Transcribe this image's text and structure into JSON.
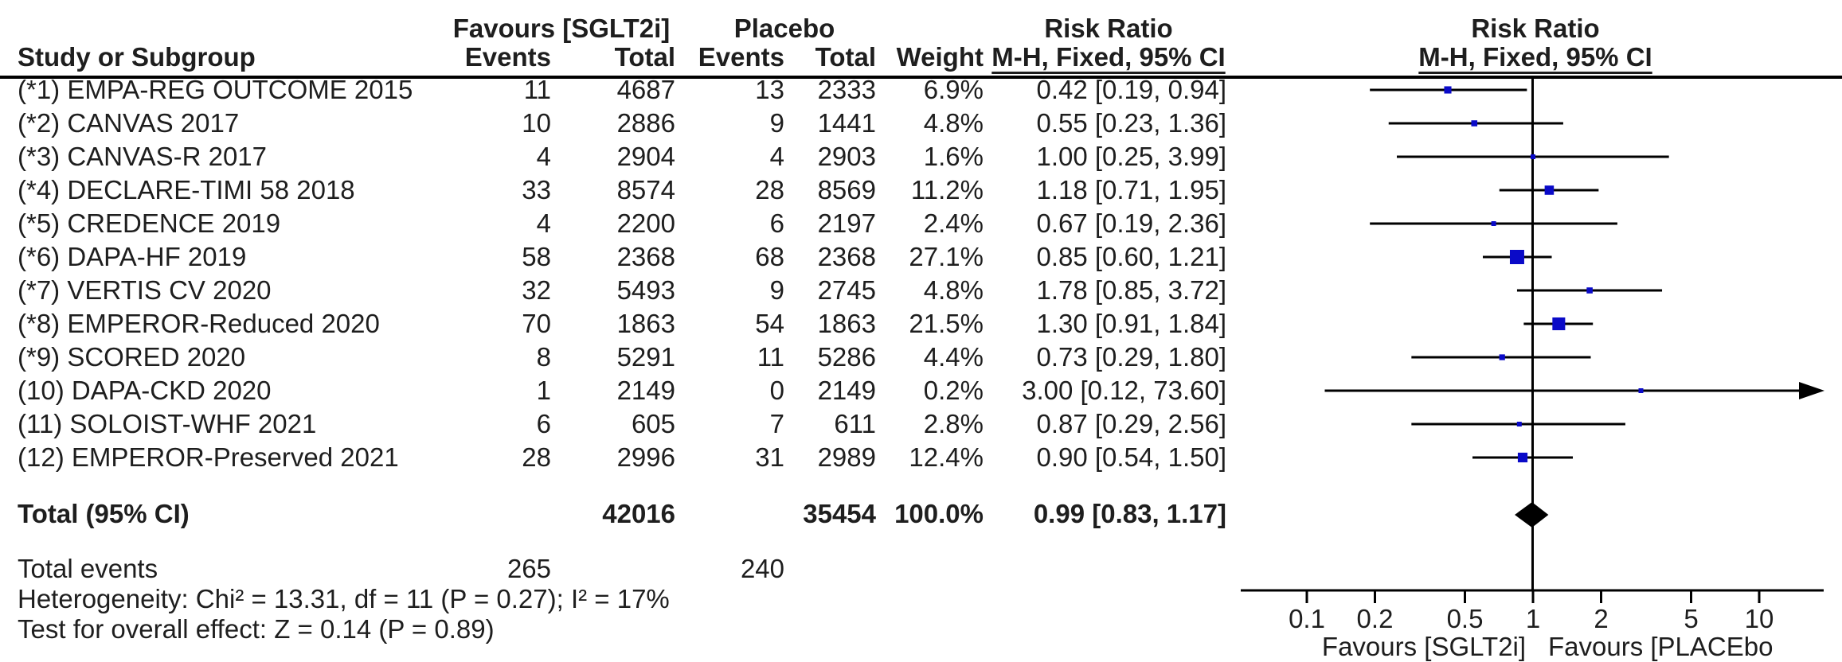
{
  "header": {
    "study_col": "Study or Subgroup",
    "group_sglt2i": "Favours [SGLT2i]",
    "group_placebo": "Placebo",
    "risk_ratio": "Risk Ratio",
    "mh_fixed_ci": "M-H, Fixed, 95% CI",
    "col_events": "Events",
    "col_total": "Total",
    "col_weight": "Weight"
  },
  "studies": [
    {
      "label": "(*1) EMPA-REG OUTCOME 2015",
      "events_sglt2i": "11",
      "total_sglt2i": "4687",
      "events_placebo": "13",
      "total_placebo": "2333",
      "weight": "6.9%",
      "ci": "0.42 [0.19, 0.94]"
    },
    {
      "label": "(*2) CANVAS 2017",
      "events_sglt2i": "10",
      "total_sglt2i": "2886",
      "events_placebo": "9",
      "total_placebo": "1441",
      "weight": "4.8%",
      "ci": "0.55 [0.23, 1.36]"
    },
    {
      "label": "(*3) CANVAS-R 2017",
      "events_sglt2i": "4",
      "total_sglt2i": "2904",
      "events_placebo": "4",
      "total_placebo": "2903",
      "weight": "1.6%",
      "ci": "1.00 [0.25, 3.99]"
    },
    {
      "label": "(*4) DECLARE-TIMI 58 2018",
      "events_sglt2i": "33",
      "total_sglt2i": "8574",
      "events_placebo": "28",
      "total_placebo": "8569",
      "weight": "11.2%",
      "ci": "1.18 [0.71, 1.95]"
    },
    {
      "label": "(*5) CREDENCE 2019",
      "events_sglt2i": "4",
      "total_sglt2i": "2200",
      "events_placebo": "6",
      "total_placebo": "2197",
      "weight": "2.4%",
      "ci": "0.67 [0.19, 2.36]"
    },
    {
      "label": "(*6) DAPA-HF 2019",
      "events_sglt2i": "58",
      "total_sglt2i": "2368",
      "events_placebo": "68",
      "total_placebo": "2368",
      "weight": "27.1%",
      "ci": "0.85 [0.60, 1.21]"
    },
    {
      "label": "(*7) VERTIS CV 2020",
      "events_sglt2i": "32",
      "total_sglt2i": "5493",
      "events_placebo": "9",
      "total_placebo": "2745",
      "weight": "4.8%",
      "ci": "1.78 [0.85, 3.72]"
    },
    {
      "label": "(*8) EMPEROR-Reduced 2020",
      "events_sglt2i": "70",
      "total_sglt2i": "1863",
      "events_placebo": "54",
      "total_placebo": "1863",
      "weight": "21.5%",
      "ci": "1.30 [0.91, 1.84]"
    },
    {
      "label": "(*9) SCORED 2020",
      "events_sglt2i": "8",
      "total_sglt2i": "5291",
      "events_placebo": "11",
      "total_placebo": "5286",
      "weight": "4.4%",
      "ci": "0.73 [0.29, 1.80]"
    },
    {
      "label": "(10) DAPA-CKD 2020",
      "events_sglt2i": "1",
      "total_sglt2i": "2149",
      "events_placebo": "0",
      "total_placebo": "2149",
      "weight": "0.2%",
      "ci": "3.00 [0.12, 73.60]"
    },
    {
      "label": "(11) SOLOIST-WHF 2021",
      "events_sglt2i": "6",
      "total_sglt2i": "605",
      "events_placebo": "7",
      "total_placebo": "611",
      "weight": "2.8%",
      "ci": "0.87 [0.29, 2.56]"
    },
    {
      "label": "(12) EMPEROR-Preserved 2021",
      "events_sglt2i": "28",
      "total_sglt2i": "2996",
      "events_placebo": "31",
      "total_placebo": "2989",
      "weight": "12.4%",
      "ci": "0.90 [0.54, 1.50]"
    }
  ],
  "total_row": {
    "label": "Total (95% CI)",
    "total_sglt2i": "42016",
    "total_placebo": "35454",
    "weight": "100.0%",
    "ci": "0.99 [0.83, 1.17]"
  },
  "total_events_row": {
    "label": "Total events",
    "events_sglt2i": "265",
    "events_placebo": "240"
  },
  "stats": {
    "heterogeneity": "Heterogeneity: Chi² = 13.31, df = 11 (P = 0.27); I² = 17%",
    "overall_effect": "Test for overall effect: Z = 0.14 (P = 0.89)"
  },
  "axis": {
    "tick_labels": [
      "0.1",
      "0.2",
      "0.5",
      "1",
      "2",
      "5",
      "10"
    ],
    "favours_left": "Favours [SGLT2i]",
    "favours_right": "Favours [PLACEbo"
  },
  "colors": {
    "square": "#0a0ac8",
    "diamond": "#000000",
    "line": "#000000",
    "text": "#1e1e1e"
  },
  "chart_data": {
    "type": "scatter",
    "title": "Forest plot — Risk Ratio, M-H, Fixed, 95% CI",
    "x_scale": "log10",
    "x_ticks": [
      0.1,
      0.2,
      0.5,
      1,
      2,
      5,
      10
    ],
    "xlim": [
      0.05,
      19
    ],
    "null_line": 1,
    "points": [
      {
        "study": "EMPA-REG OUTCOME 2015",
        "rr": 0.42,
        "ci_low": 0.19,
        "ci_high": 0.94,
        "weight_pct": 6.9
      },
      {
        "study": "CANVAS 2017",
        "rr": 0.55,
        "ci_low": 0.23,
        "ci_high": 1.36,
        "weight_pct": 4.8
      },
      {
        "study": "CANVAS-R 2017",
        "rr": 1.0,
        "ci_low": 0.25,
        "ci_high": 3.99,
        "weight_pct": 1.6
      },
      {
        "study": "DECLARE-TIMI 58 2018",
        "rr": 1.18,
        "ci_low": 0.71,
        "ci_high": 1.95,
        "weight_pct": 11.2
      },
      {
        "study": "CREDENCE 2019",
        "rr": 0.67,
        "ci_low": 0.19,
        "ci_high": 2.36,
        "weight_pct": 2.4
      },
      {
        "study": "DAPA-HF 2019",
        "rr": 0.85,
        "ci_low": 0.6,
        "ci_high": 1.21,
        "weight_pct": 27.1
      },
      {
        "study": "VERTIS CV 2020",
        "rr": 1.78,
        "ci_low": 0.85,
        "ci_high": 3.72,
        "weight_pct": 4.8
      },
      {
        "study": "EMPEROR-Reduced 2020",
        "rr": 1.3,
        "ci_low": 0.91,
        "ci_high": 1.84,
        "weight_pct": 21.5
      },
      {
        "study": "SCORED 2020",
        "rr": 0.73,
        "ci_low": 0.29,
        "ci_high": 1.8,
        "weight_pct": 4.4
      },
      {
        "study": "DAPA-CKD 2020",
        "rr": 3.0,
        "ci_low": 0.12,
        "ci_high": 73.6,
        "weight_pct": 0.2
      },
      {
        "study": "SOLOIST-WHF 2021",
        "rr": 0.87,
        "ci_low": 0.29,
        "ci_high": 2.56,
        "weight_pct": 2.8
      },
      {
        "study": "EMPEROR-Preserved 2021",
        "rr": 0.9,
        "ci_low": 0.54,
        "ci_high": 1.5,
        "weight_pct": 12.4
      }
    ],
    "total": {
      "label": "Total (95% CI)",
      "rr": 0.99,
      "ci_low": 0.83,
      "ci_high": 1.17,
      "weight_pct": 100.0
    }
  }
}
